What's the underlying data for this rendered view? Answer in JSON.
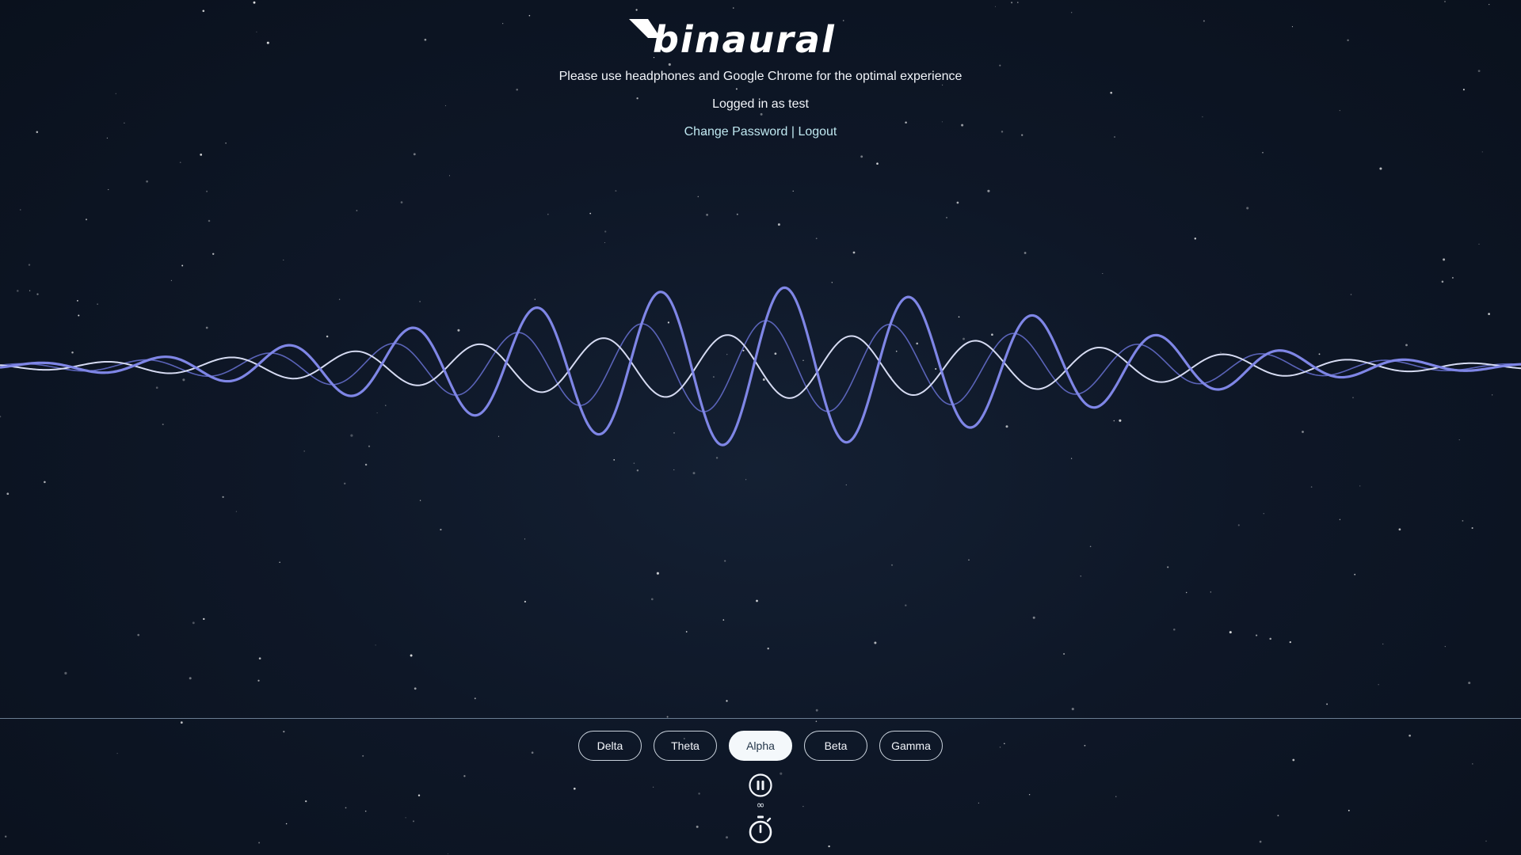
{
  "brand": {
    "logo_text": "binaural"
  },
  "header": {
    "notice": "Please use headphones and Google Chrome for the optimal experience",
    "login_status": "Logged in as test",
    "change_password_label": "Change Password",
    "link_separator": "|",
    "logout_label": "Logout"
  },
  "bands": {
    "options": [
      "Delta",
      "Theta",
      "Alpha",
      "Beta",
      "Gamma"
    ],
    "selected": "Alpha"
  },
  "controls": {
    "play_state_icon": "pause-icon",
    "duration_text": "∞",
    "timer_icon": "stopwatch-icon"
  },
  "colors": {
    "wave_primary": "#7f86e6",
    "wave_secondary": "#5a63b8",
    "wave_light": "#d6dbf2",
    "accent_link": "#bfe7f0"
  }
}
